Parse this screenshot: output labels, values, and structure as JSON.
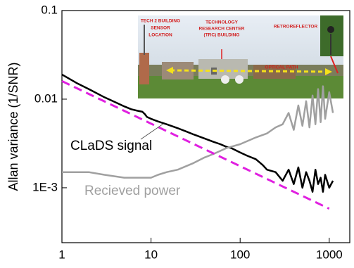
{
  "chart_data": {
    "type": "line",
    "ylabel": "Allan variance (1/SNR)",
    "xscale": "log",
    "yscale": "log",
    "xlim": [
      1,
      1700
    ],
    "ylim": [
      0.00024,
      0.1
    ],
    "xticks": [
      1,
      10,
      100,
      1000
    ],
    "yticks": [
      {
        "value": 0.001,
        "label": "1E-3"
      },
      0.01,
      0.1
    ],
    "series": [
      {
        "name": "CLaDS signal",
        "color": "#000000",
        "x": [
          1,
          1.5,
          2,
          3,
          4,
          5,
          6,
          7,
          8,
          8.5,
          9,
          10,
          12,
          15,
          20,
          25,
          30,
          40,
          50,
          60,
          70,
          80,
          100,
          120,
          150,
          180,
          200,
          250,
          300,
          350,
          400,
          450,
          500,
          550,
          600,
          650,
          700,
          750,
          800,
          850,
          900,
          1000,
          1100
        ],
        "values": [
          0.019,
          0.015,
          0.013,
          0.0105,
          0.0092,
          0.0083,
          0.0077,
          0.0074,
          0.0072,
          0.0068,
          0.0063,
          0.006,
          0.0056,
          0.0052,
          0.0047,
          0.0043,
          0.004,
          0.0036,
          0.0033,
          0.0031,
          0.0029,
          0.0028,
          0.0025,
          0.0023,
          0.0021,
          0.0018,
          0.0016,
          0.0015,
          0.0012,
          0.0016,
          0.0011,
          0.0017,
          0.001,
          0.0015,
          0.0012,
          0.0009,
          0.0016,
          0.0011,
          0.0013,
          0.0009,
          0.0014,
          0.001,
          0.0012
        ]
      },
      {
        "name": "Recieved power",
        "color": "#a0a0a0",
        "x": [
          1,
          2,
          3,
          5,
          7,
          10,
          12,
          15,
          20,
          30,
          40,
          50,
          70,
          100,
          150,
          200,
          250,
          300,
          350,
          400,
          450,
          500,
          550,
          600,
          650,
          700,
          750,
          800,
          850,
          900,
          1000,
          1100
        ],
        "values": [
          0.0015,
          0.0015,
          0.0014,
          0.0013,
          0.0013,
          0.0013,
          0.0014,
          0.0015,
          0.0016,
          0.0019,
          0.0022,
          0.0024,
          0.0028,
          0.0031,
          0.0037,
          0.0041,
          0.0048,
          0.0052,
          0.007,
          0.0045,
          0.0085,
          0.005,
          0.0095,
          0.0048,
          0.011,
          0.0052,
          0.013,
          0.0055,
          0.014,
          0.006,
          0.012,
          0.007
        ]
      },
      {
        "color": "#e020e0",
        "dashed": true,
        "x": [
          1,
          1000
        ],
        "values": [
          0.016,
          0.00058
        ]
      }
    ],
    "annotations": [
      "TECH 2 BUILDING",
      "SENSOR",
      "LOCATION",
      "TECHNOLOGY",
      "RESEARCH CENTER",
      "(TRC) BUILDING",
      "RETROREFLECTOR",
      "OPTICAL PATH"
    ]
  }
}
